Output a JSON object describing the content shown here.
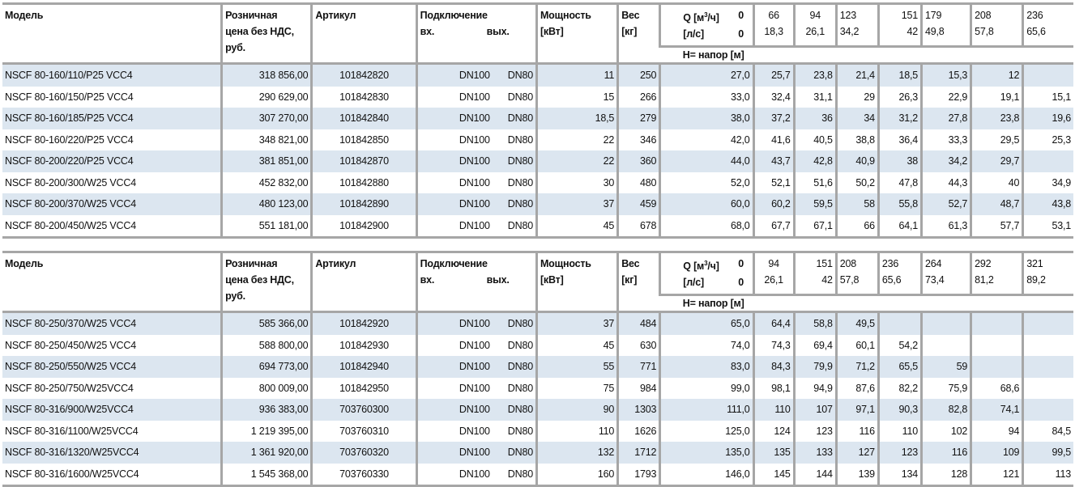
{
  "headers": {
    "model": "Модель",
    "price": [
      "Розничная",
      "цена без НДС,",
      "руб."
    ],
    "article": "Артикул",
    "connection": "Подключение",
    "conn_in": "вх.",
    "conn_out": "вых.",
    "power": [
      "Мощность",
      "[кВт]"
    ],
    "weight": [
      "Вес",
      "[кг]"
    ],
    "q_m3h_label_pre": "Q [м",
    "q_m3h_sup": "3",
    "q_m3h_label_post": "/ч]",
    "q_ls_label": "[л/с]",
    "head_label": "H= напор [м]"
  },
  "tables": [
    {
      "q_m3h": [
        "0",
        "66",
        "94",
        "123",
        "151",
        "179",
        "208",
        "236"
      ],
      "q_ls": [
        "0",
        "18,3",
        "26,1",
        "34,2",
        "42",
        "49,8",
        "57,8",
        "65,6"
      ],
      "rows": [
        {
          "model": "NSCF 80-160/110/P25 VCC4",
          "price": "318 856,00",
          "article": "101842820",
          "in": "DN100",
          "out": "DN80",
          "power": "11",
          "weight": "250",
          "heads": [
            "27,0",
            "25,7",
            "23,8",
            "21,4",
            "18,5",
            "15,3",
            "12",
            ""
          ]
        },
        {
          "model": "NSCF 80-160/150/P25 VCC4",
          "price": "290 629,00",
          "article": "101842830",
          "in": "DN100",
          "out": "DN80",
          "power": "15",
          "weight": "266",
          "heads": [
            "33,0",
            "32,4",
            "31,1",
            "29",
            "26,3",
            "22,9",
            "19,1",
            "15,1"
          ]
        },
        {
          "model": "NSCF 80-160/185/P25 VCC4",
          "price": "307 270,00",
          "article": "101842840",
          "in": "DN100",
          "out": "DN80",
          "power": "18,5",
          "weight": "279",
          "heads": [
            "38,0",
            "37,2",
            "36",
            "34",
            "31,2",
            "27,8",
            "23,8",
            "19,6"
          ]
        },
        {
          "model": "NSCF 80-160/220/P25 VCC4",
          "price": "348 821,00",
          "article": "101842850",
          "in": "DN100",
          "out": "DN80",
          "power": "22",
          "weight": "346",
          "heads": [
            "42,0",
            "41,6",
            "40,5",
            "38,8",
            "36,4",
            "33,3",
            "29,5",
            "25,3"
          ]
        },
        {
          "model": "NSCF 80-200/220/P25 VCC4",
          "price": "381 851,00",
          "article": "101842870",
          "in": "DN100",
          "out": "DN80",
          "power": "22",
          "weight": "360",
          "heads": [
            "44,0",
            "43,7",
            "42,8",
            "40,9",
            "38",
            "34,2",
            "29,7",
            ""
          ]
        },
        {
          "model": "NSCF 80-200/300/W25 VCC4",
          "price": "452 832,00",
          "article": "101842880",
          "in": "DN100",
          "out": "DN80",
          "power": "30",
          "weight": "480",
          "heads": [
            "52,0",
            "52,1",
            "51,6",
            "50,2",
            "47,8",
            "44,3",
            "40",
            "34,9"
          ]
        },
        {
          "model": "NSCF 80-200/370/W25 VCC4",
          "price": "480 123,00",
          "article": "101842890",
          "in": "DN100",
          "out": "DN80",
          "power": "37",
          "weight": "459",
          "heads": [
            "60,0",
            "60,2",
            "59,5",
            "58",
            "55,8",
            "52,7",
            "48,7",
            "43,8"
          ]
        },
        {
          "model": "NSCF 80-200/450/W25 VCC4",
          "price": "551 181,00",
          "article": "101842900",
          "in": "DN100",
          "out": "DN80",
          "power": "45",
          "weight": "678",
          "heads": [
            "68,0",
            "67,7",
            "67,1",
            "66",
            "64,1",
            "61,3",
            "57,7",
            "53,1"
          ]
        }
      ]
    },
    {
      "q_m3h": [
        "0",
        "94",
        "151",
        "208",
        "236",
        "264",
        "292",
        "321"
      ],
      "q_ls": [
        "0",
        "26,1",
        "42",
        "57,8",
        "65,6",
        "73,4",
        "81,2",
        "89,2"
      ],
      "rows": [
        {
          "model": "NSCF 80-250/370/W25 VCC4",
          "price": "585 366,00",
          "article": "101842920",
          "in": "DN100",
          "out": "DN80",
          "power": "37",
          "weight": "484",
          "heads": [
            "65,0",
            "64,4",
            "58,8",
            "49,5",
            "",
            "",
            "",
            ""
          ]
        },
        {
          "model": "NSCF 80-250/450/W25 VCC4",
          "price": "588 800,00",
          "article": "101842930",
          "in": "DN100",
          "out": "DN80",
          "power": "45",
          "weight": "630",
          "heads": [
            "74,0",
            "74,3",
            "69,4",
            "60,1",
            "54,2",
            "",
            "",
            ""
          ]
        },
        {
          "model": "NSCF 80-250/550/W25 VCC4",
          "price": "694 773,00",
          "article": "101842940",
          "in": "DN100",
          "out": "DN80",
          "power": "55",
          "weight": "771",
          "heads": [
            "83,0",
            "84,3",
            "79,9",
            "71,2",
            "65,5",
            "59",
            "",
            ""
          ]
        },
        {
          "model": "NSCF 80-250/750/W25VCC4",
          "price": "800 009,00",
          "article": "101842950",
          "in": "DN100",
          "out": "DN80",
          "power": "75",
          "weight": "984",
          "heads": [
            "99,0",
            "98,1",
            "94,9",
            "87,6",
            "82,2",
            "75,9",
            "68,6",
            ""
          ]
        },
        {
          "model": "NSCF 80-316/900/W25VCC4",
          "price": "936 383,00",
          "article": "703760300",
          "in": "DN100",
          "out": "DN80",
          "power": "90",
          "weight": "1303",
          "heads": [
            "111,0",
            "110",
            "107",
            "97,1",
            "90,3",
            "82,8",
            "74,1",
            ""
          ]
        },
        {
          "model": "NSCF 80-316/1100/W25VCC4",
          "price": "1 219 395,00",
          "article": "703760310",
          "in": "DN100",
          "out": "DN80",
          "power": "110",
          "weight": "1626",
          "heads": [
            "125,0",
            "124",
            "123",
            "116",
            "110",
            "102",
            "94",
            "84,5"
          ]
        },
        {
          "model": "NSCF 80-316/1320/W25VCC4",
          "price": "1 361 920,00",
          "article": "703760320",
          "in": "DN100",
          "out": "DN80",
          "power": "132",
          "weight": "1712",
          "heads": [
            "135,0",
            "135",
            "133",
            "127",
            "123",
            "116",
            "109",
            "99,5"
          ]
        },
        {
          "model": "NSCF 80-316/1600/W25VCC4",
          "price": "1 545 368,00",
          "article": "703760330",
          "in": "DN100",
          "out": "DN80",
          "power": "160",
          "weight": "1793",
          "heads": [
            "146,0",
            "145",
            "144",
            "139",
            "134",
            "128",
            "121",
            "113"
          ]
        }
      ]
    }
  ]
}
